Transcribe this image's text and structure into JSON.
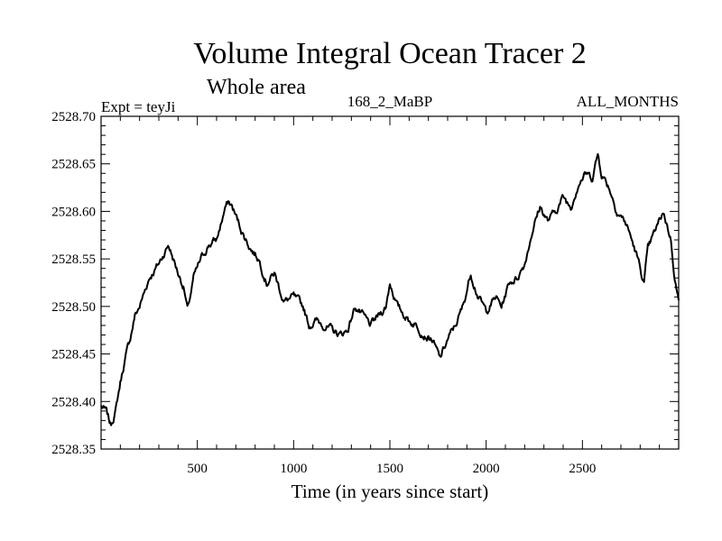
{
  "chart_data": {
    "type": "line",
    "title": "Volume Integral Ocean Tracer 2",
    "subtitle": "Whole area",
    "expt_label": "Expt = teyJi",
    "run_label": "168_2_MaBP",
    "period_label": "ALL_MONTHS",
    "xlabel": "Time (in years since start)",
    "ylabel": "",
    "xlim": [
      0,
      3000
    ],
    "ylim": [
      2528.35,
      2528.7
    ],
    "xticks": [
      500,
      1000,
      1500,
      2000,
      2500
    ],
    "xtick_labels": [
      "500",
      "1000",
      "1500",
      "2000",
      "2500"
    ],
    "yticks": [
      2528.35,
      2528.4,
      2528.45,
      2528.5,
      2528.55,
      2528.6,
      2528.65,
      2528.7
    ],
    "ytick_labels": [
      "2528.35",
      "2528.40",
      "2528.45",
      "2528.50",
      "2528.55",
      "2528.60",
      "2528.65",
      "2528.70"
    ],
    "grid": false,
    "series": [
      {
        "name": "Volume Integral Ocean Tracer 2",
        "color": "#000000",
        "x": [
          0,
          25,
          50,
          75,
          100,
          125,
          150,
          175,
          200,
          250,
          300,
          350,
          400,
          430,
          450,
          480,
          520,
          560,
          600,
          640,
          660,
          680,
          700,
          740,
          780,
          820,
          860,
          900,
          950,
          1000,
          1050,
          1080,
          1120,
          1160,
          1200,
          1240,
          1280,
          1320,
          1360,
          1400,
          1440,
          1480,
          1500,
          1540,
          1600,
          1640,
          1680,
          1720,
          1760,
          1800,
          1840,
          1880,
          1920,
          1960,
          2000,
          2050,
          2080,
          2120,
          2160,
          2200,
          2240,
          2280,
          2320,
          2360,
          2400,
          2440,
          2480,
          2520,
          2550,
          2580,
          2600,
          2640,
          2680,
          2720,
          2740,
          2780,
          2800,
          2820,
          2840,
          2880,
          2920,
          2960,
          2980,
          3000
        ],
        "y": [
          2528.395,
          2528.39,
          2528.375,
          2528.39,
          2528.42,
          2528.445,
          2528.465,
          2528.49,
          2528.5,
          2528.53,
          2528.545,
          2528.565,
          2528.535,
          2528.52,
          2528.495,
          2528.53,
          2528.55,
          2528.565,
          2528.57,
          2528.6,
          2528.61,
          2528.605,
          2528.595,
          2528.575,
          2528.56,
          2528.55,
          2528.525,
          2528.535,
          2528.505,
          2528.51,
          2528.5,
          2528.48,
          2528.485,
          2528.48,
          2528.475,
          2528.47,
          2528.475,
          2528.5,
          2528.49,
          2528.48,
          2528.49,
          2528.5,
          2528.525,
          2528.5,
          2528.485,
          2528.48,
          2528.47,
          2528.465,
          2528.445,
          2528.465,
          2528.48,
          2528.5,
          2528.535,
          2528.51,
          2528.495,
          2528.51,
          2528.5,
          2528.525,
          2528.53,
          2528.545,
          2528.58,
          2528.605,
          2528.59,
          2528.6,
          2528.615,
          2528.605,
          2528.63,
          2528.64,
          2528.635,
          2528.66,
          2528.64,
          2528.625,
          2528.6,
          2528.59,
          2528.58,
          2528.555,
          2528.54,
          2528.525,
          2528.56,
          2528.58,
          2528.6,
          2528.57,
          2528.53,
          2528.505
        ]
      }
    ]
  }
}
